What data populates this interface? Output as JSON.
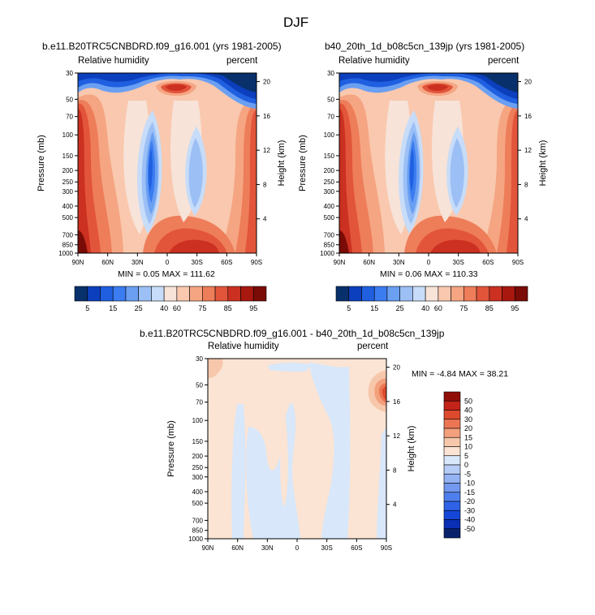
{
  "figure": {
    "title": "DJF",
    "palette_abs": [
      "#08306b",
      "#0c3fbd",
      "#1f5fe0",
      "#3b7cf0",
      "#6a9ff2",
      "#9cc0f5",
      "#c7dcf8",
      "#f7e3d8",
      "#f9c8ae",
      "#f5a582",
      "#ee7d5a",
      "#e2553b",
      "#cb3020",
      "#a8180f",
      "#7a0b06"
    ],
    "palette_diff": [
      "#08236b",
      "#0a2fb5",
      "#1446d8",
      "#2f62e6",
      "#4f7fec",
      "#7299ef",
      "#94b3f2",
      "#b6cbf5",
      "#d8e7fa",
      "#fbe4d4",
      "#f7c7ab",
      "#f3a07d",
      "#ec7653",
      "#de4a2e",
      "#c4231a",
      "#8f0e08"
    ]
  },
  "chart_data": [
    {
      "id": "panel_a",
      "type": "heatmap",
      "title": "b.e11.B20TRC5CNBDRD.f09_g16.001 (yrs 1981-2005)",
      "left_label": "Relative humidity",
      "right_label": "percent",
      "ylabel": "Pressure (mb)",
      "ylabel_right": "Height (km)",
      "x_ticks": [
        "90N",
        "60N",
        "30N",
        "0",
        "30S",
        "60S",
        "90S"
      ],
      "pressure_ticks": [
        "30",
        "50",
        "70",
        "100",
        "150",
        "200",
        "250",
        "300",
        "400",
        "500",
        "700",
        "850",
        "1000"
      ],
      "height_ticks": [
        "20",
        "16",
        "12",
        "8",
        "4"
      ],
      "colorbar_labels": [
        "5",
        "15",
        "25",
        "40",
        "60",
        "75",
        "85",
        "95"
      ],
      "min_text": "MIN =  0.05  MAX = 111.62"
    },
    {
      "id": "panel_b",
      "type": "heatmap",
      "title": "b40_20th_1d_b08c5cn_139jp (yrs 1981-2005)",
      "left_label": "Relative humidity",
      "right_label": "percent",
      "ylabel": "Pressure (mb)",
      "ylabel_right": "Height (km)",
      "x_ticks": [
        "90N",
        "60N",
        "30N",
        "0",
        "30S",
        "60S",
        "90S"
      ],
      "pressure_ticks": [
        "30",
        "50",
        "70",
        "100",
        "150",
        "200",
        "250",
        "300",
        "400",
        "500",
        "700",
        "850",
        "1000"
      ],
      "height_ticks": [
        "20",
        "16",
        "12",
        "8",
        "4"
      ],
      "colorbar_labels": [
        "5",
        "15",
        "25",
        "40",
        "60",
        "75",
        "85",
        "95"
      ],
      "min_text": "MIN =  0.06  MAX = 110.33"
    },
    {
      "id": "panel_c",
      "type": "heatmap",
      "title": "b.e11.B20TRC5CNBDRD.f09_g16.001 - b40_20th_1d_b08c5cn_139jp",
      "left_label": "Relative humidity",
      "right_label": "percent",
      "ylabel": "Pressure (mb)",
      "ylabel_right": "Height (km)",
      "x_ticks": [
        "90N",
        "60N",
        "30N",
        "0",
        "30S",
        "60S",
        "90S"
      ],
      "pressure_ticks": [
        "30",
        "50",
        "70",
        "100",
        "150",
        "200",
        "250",
        "300",
        "400",
        "500",
        "700",
        "850",
        "1000"
      ],
      "height_ticks": [
        "20",
        "16",
        "12",
        "8",
        "4"
      ],
      "colorbar_labels": [
        "50",
        "40",
        "30",
        "20",
        "15",
        "10",
        "5",
        "0",
        "-5",
        "-10",
        "-15",
        "-20",
        "-30",
        "-40",
        "-50"
      ],
      "min_text": "MIN =  -4.84  MAX =  38.21"
    }
  ]
}
